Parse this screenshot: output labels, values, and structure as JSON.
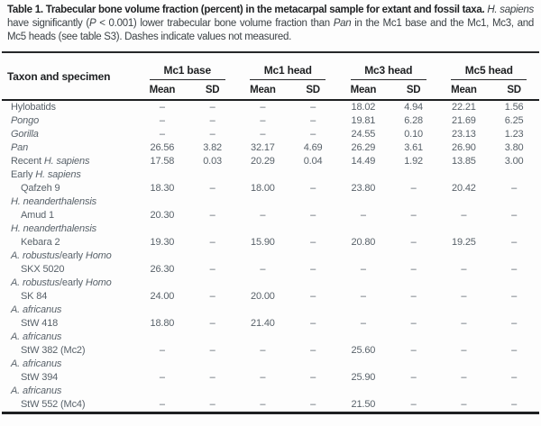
{
  "caption": {
    "segments": [
      {
        "t": "Table 1. Trabecular bone volume fraction (percent) in the metacarpal sample for extant and fossil taxa. ",
        "b": true
      },
      {
        "t": "H. sapiens",
        "i": true
      },
      {
        "t": " have significantly ("
      },
      {
        "t": "P",
        "i": true
      },
      {
        "t": " < 0.001) lower trabecular bone volume fraction than "
      },
      {
        "t": "Pan",
        "i": true
      },
      {
        "t": " in the Mc1 base and the Mc1, Mc3, and Mc5 heads (see table S3). Dashes indicate values not measured."
      }
    ]
  },
  "table": {
    "taxon_header": "Taxon and specimen",
    "groups": [
      {
        "label": "Mc1 base"
      },
      {
        "label": "Mc1 head"
      },
      {
        "label": "Mc3 head"
      },
      {
        "label": "Mc5 head"
      }
    ],
    "sub_headers": [
      "Mean",
      "SD"
    ],
    "dash": "–",
    "rows": [
      {
        "indent": 0,
        "label": [
          {
            "t": "Hylobatids"
          }
        ],
        "v": [
          "–",
          "–",
          "–",
          "–",
          "18.02",
          "4.94",
          "22.21",
          "1.56"
        ]
      },
      {
        "indent": 0,
        "label": [
          {
            "t": "Pongo",
            "i": true
          }
        ],
        "v": [
          "–",
          "–",
          "–",
          "–",
          "19.81",
          "6.28",
          "21.69",
          "6.25"
        ]
      },
      {
        "indent": 0,
        "label": [
          {
            "t": "Gorilla",
            "i": true
          }
        ],
        "v": [
          "–",
          "–",
          "–",
          "–",
          "24.55",
          "0.10",
          "23.13",
          "1.23"
        ]
      },
      {
        "indent": 0,
        "label": [
          {
            "t": "Pan",
            "i": true
          }
        ],
        "v": [
          "26.56",
          "3.82",
          "32.17",
          "4.69",
          "26.29",
          "3.61",
          "26.90",
          "3.80"
        ]
      },
      {
        "indent": 0,
        "label": [
          {
            "t": "Recent "
          },
          {
            "t": "H. sapiens",
            "i": true
          }
        ],
        "v": [
          "17.58",
          "0.03",
          "20.29",
          "0.04",
          "14.49",
          "1.92",
          "13.85",
          "3.00"
        ]
      },
      {
        "indent": 0,
        "label": [
          {
            "t": "Early "
          },
          {
            "t": "H. sapiens",
            "i": true
          }
        ],
        "v": [
          "",
          "",
          "",
          "",
          "",
          "",
          "",
          ""
        ]
      },
      {
        "indent": 1,
        "label": [
          {
            "t": "Qafzeh 9"
          }
        ],
        "v": [
          "18.30",
          "–",
          "18.00",
          "–",
          "23.80",
          "–",
          "20.42",
          "–"
        ]
      },
      {
        "indent": 0,
        "label": [
          {
            "t": "H. neanderthalensis",
            "i": true
          }
        ],
        "v": [
          "",
          "",
          "",
          "",
          "",
          "",
          "",
          ""
        ]
      },
      {
        "indent": 1,
        "label": [
          {
            "t": "Amud 1"
          }
        ],
        "v": [
          "20.30",
          "–",
          "–",
          "–",
          "–",
          "–",
          "–",
          "–"
        ]
      },
      {
        "indent": 0,
        "label": [
          {
            "t": "H. neanderthalensis",
            "i": true
          }
        ],
        "v": [
          "",
          "",
          "",
          "",
          "",
          "",
          "",
          ""
        ]
      },
      {
        "indent": 1,
        "label": [
          {
            "t": "Kebara 2"
          }
        ],
        "v": [
          "19.30",
          "–",
          "15.90",
          "–",
          "20.80",
          "–",
          "19.25",
          "–"
        ]
      },
      {
        "indent": 0,
        "label": [
          {
            "t": "A. robustus",
            "i": true
          },
          {
            "t": "/early "
          },
          {
            "t": "Homo",
            "i": true
          }
        ],
        "v": [
          "",
          "",
          "",
          "",
          "",
          "",
          "",
          ""
        ]
      },
      {
        "indent": 1,
        "label": [
          {
            "t": "SKX 5020"
          }
        ],
        "v": [
          "26.30",
          "–",
          "–",
          "–",
          "–",
          "–",
          "–",
          "–"
        ]
      },
      {
        "indent": 0,
        "label": [
          {
            "t": "A. robustus",
            "i": true
          },
          {
            "t": "/early "
          },
          {
            "t": "Homo",
            "i": true
          }
        ],
        "v": [
          "",
          "",
          "",
          "",
          "",
          "",
          "",
          ""
        ]
      },
      {
        "indent": 1,
        "label": [
          {
            "t": "SK 84"
          }
        ],
        "v": [
          "24.00",
          "–",
          "20.00",
          "–",
          "–",
          "–",
          "–",
          "–"
        ]
      },
      {
        "indent": 0,
        "label": [
          {
            "t": "A. africanus",
            "i": true
          }
        ],
        "v": [
          "",
          "",
          "",
          "",
          "",
          "",
          "",
          ""
        ]
      },
      {
        "indent": 1,
        "label": [
          {
            "t": "StW 418"
          }
        ],
        "v": [
          "18.80",
          "–",
          "21.40",
          "–",
          "–",
          "–",
          "–",
          "–"
        ]
      },
      {
        "indent": 0,
        "label": [
          {
            "t": "A. africanus",
            "i": true
          }
        ],
        "v": [
          "",
          "",
          "",
          "",
          "",
          "",
          "",
          ""
        ]
      },
      {
        "indent": 1,
        "label": [
          {
            "t": "StW 382 (Mc2)"
          }
        ],
        "v": [
          "–",
          "–",
          "–",
          "–",
          "25.60",
          "–",
          "–",
          "–"
        ]
      },
      {
        "indent": 0,
        "label": [
          {
            "t": "A. africanus",
            "i": true
          }
        ],
        "v": [
          "",
          "",
          "",
          "",
          "",
          "",
          "",
          ""
        ]
      },
      {
        "indent": 1,
        "label": [
          {
            "t": "StW 394"
          }
        ],
        "v": [
          "–",
          "–",
          "–",
          "–",
          "25.90",
          "–",
          "–",
          "–"
        ]
      },
      {
        "indent": 0,
        "label": [
          {
            "t": "A. africanus",
            "i": true
          }
        ],
        "v": [
          "",
          "",
          "",
          "",
          "",
          "",
          "",
          ""
        ]
      },
      {
        "indent": 1,
        "label": [
          {
            "t": "StW 552 (Mc4)"
          }
        ],
        "v": [
          "–",
          "–",
          "–",
          "–",
          "21.50",
          "–",
          "–",
          "–"
        ]
      }
    ]
  },
  "colors": {
    "rule": "#26282a",
    "heading_text": "#1e2022",
    "data_text": "#59626a",
    "caption_bold": "#212325"
  }
}
